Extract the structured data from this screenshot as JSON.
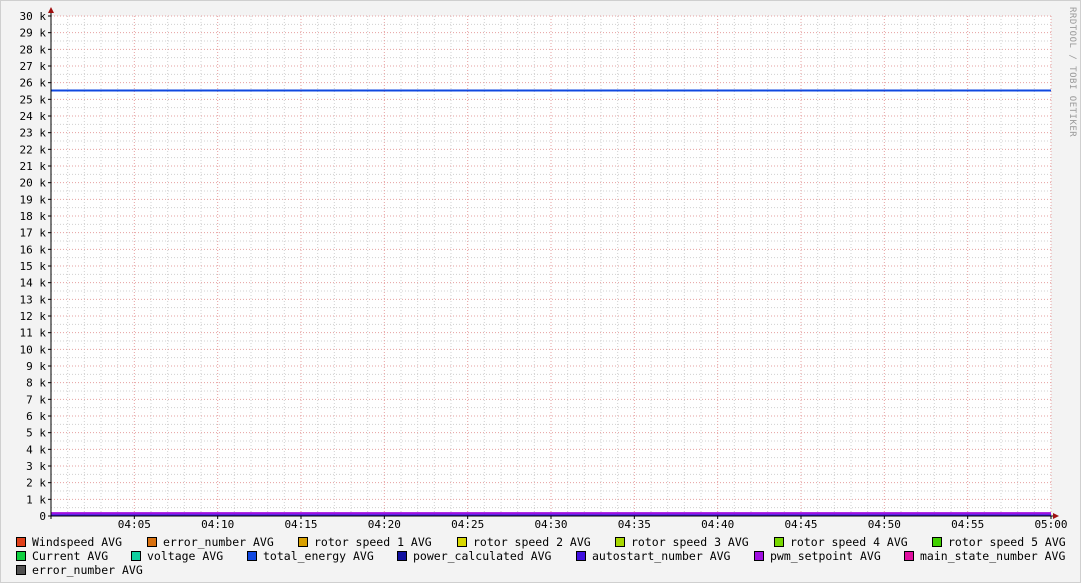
{
  "chart_data": {
    "type": "line",
    "title": "",
    "xlabel": "",
    "ylabel": "",
    "ylim": [
      0,
      30000
    ],
    "xlim": [
      "04:00",
      "05:00"
    ],
    "grid": true,
    "legend_placement": "bottom",
    "y_ticks": [
      "0",
      "1 k",
      "2 k",
      "3 k",
      "4 k",
      "5 k",
      "6 k",
      "7 k",
      "8 k",
      "9 k",
      "10 k",
      "11 k",
      "12 k",
      "13 k",
      "14 k",
      "15 k",
      "16 k",
      "17 k",
      "18 k",
      "19 k",
      "20 k",
      "21 k",
      "22 k",
      "23 k",
      "24 k",
      "25 k",
      "26 k",
      "27 k",
      "28 k",
      "29 k",
      "30 k"
    ],
    "x_ticks": [
      "04:05",
      "04:10",
      "04:15",
      "04:20",
      "04:25",
      "04:30",
      "04:35",
      "04:40",
      "04:45",
      "04:50",
      "04:55",
      "05:00"
    ],
    "credit": "RRDTOOL / TOBI OETIKER",
    "series": [
      {
        "name": "Windspeed AVG",
        "color": "#e0401a"
      },
      {
        "name": "error_number AVG",
        "color": "#d8700f"
      },
      {
        "name": "rotor speed 1 AVG",
        "color": "#d8a000"
      },
      {
        "name": "rotor speed 2 AVG",
        "color": "#d8d800"
      },
      {
        "name": "rotor speed 3 AVG",
        "color": "#a8d800"
      },
      {
        "name": "rotor speed 4 AVG",
        "color": "#78d800"
      },
      {
        "name": "rotor speed 5 AVG",
        "color": "#40d000"
      },
      {
        "name": "Current AVG",
        "color": "#10d040"
      },
      {
        "name": "voltage AVG",
        "color": "#10d0a0"
      },
      {
        "name": "total_energy AVG",
        "color": "#1048e0",
        "values": [
          [
            0,
            25530
          ],
          [
            60,
            25530
          ]
        ]
      },
      {
        "name": "power_calculated AVG",
        "color": "#1010a0"
      },
      {
        "name": "autostart_number AVG",
        "color": "#4010e0",
        "values": [
          [
            0,
            50
          ],
          [
            60,
            50
          ]
        ]
      },
      {
        "name": "pwm_setpoint AVG",
        "color": "#a010e0",
        "values": [
          [
            0,
            170
          ],
          [
            60,
            170
          ]
        ]
      },
      {
        "name": "main_state_number AVG",
        "color": "#e010a0"
      },
      {
        "name": "error_number AVG",
        "color": "#505050"
      }
    ]
  }
}
